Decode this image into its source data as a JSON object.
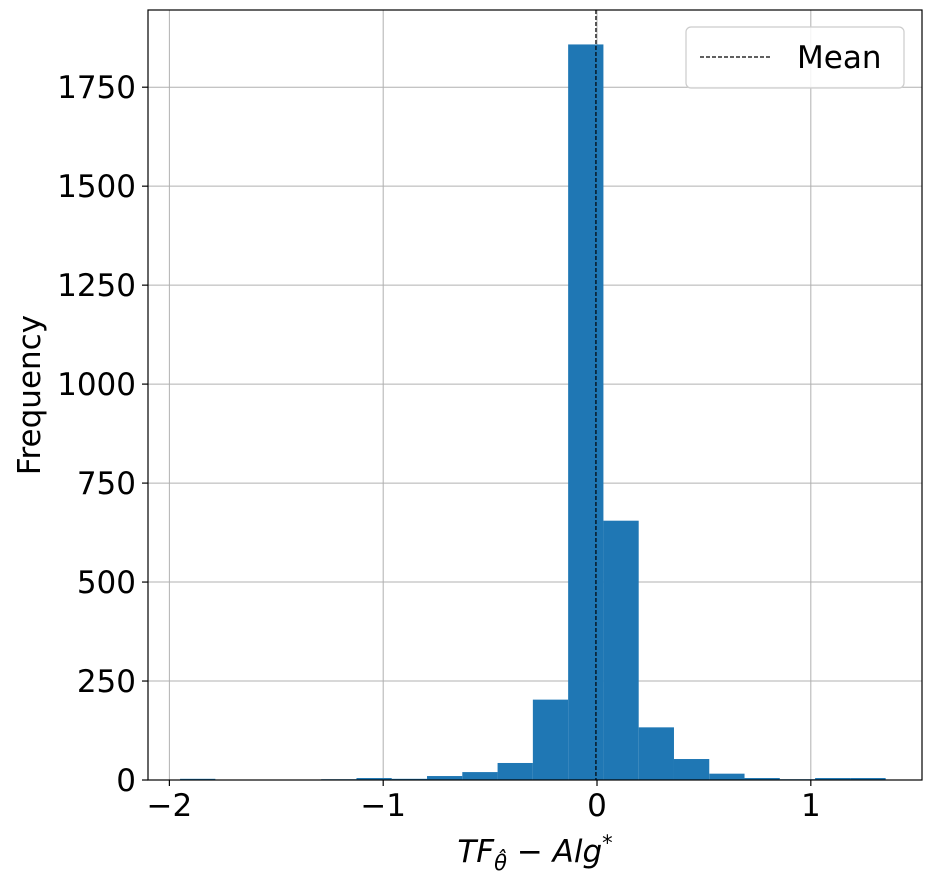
{
  "chart_data": {
    "type": "bar",
    "subtype": "histogram",
    "xlabel": "TF_θ̂ − Alg*",
    "xlabel_parts": {
      "main": "TF",
      "sub": "θ̂",
      "rest": " − Alg",
      "sup": "*"
    },
    "ylabel": "Frequency",
    "xlim": [
      -2.1,
      1.52
    ],
    "ylim": [
      0,
      1945
    ],
    "xticks": [
      -2,
      -1,
      0,
      1
    ],
    "xtick_labels": [
      "−2",
      "−1",
      "0",
      "1"
    ],
    "yticks": [
      0,
      250,
      500,
      750,
      1000,
      1250,
      1500,
      1750
    ],
    "ytick_labels": [
      "0",
      "250",
      "500",
      "750",
      "1000",
      "1250",
      "1500",
      "1750"
    ],
    "grid": true,
    "bar_color": "#1f77b4",
    "bin_edges": [
      -1.95,
      -1.785,
      -1.62,
      -1.455,
      -1.29,
      -1.125,
      -0.96,
      -0.795,
      -0.63,
      -0.465,
      -0.3,
      -0.135,
      0.03,
      0.195,
      0.36,
      0.525,
      0.69,
      0.855,
      1.02,
      1.185,
      1.35
    ],
    "values": [
      3,
      0,
      0,
      0,
      2,
      5,
      3,
      10,
      20,
      43,
      203,
      1858,
      655,
      133,
      53,
      16,
      5,
      2,
      5,
      5
    ],
    "mean_line": {
      "x": -0.005,
      "label": "Mean",
      "style": "dashed",
      "color": "#000000"
    },
    "legend_position": "upper right"
  }
}
